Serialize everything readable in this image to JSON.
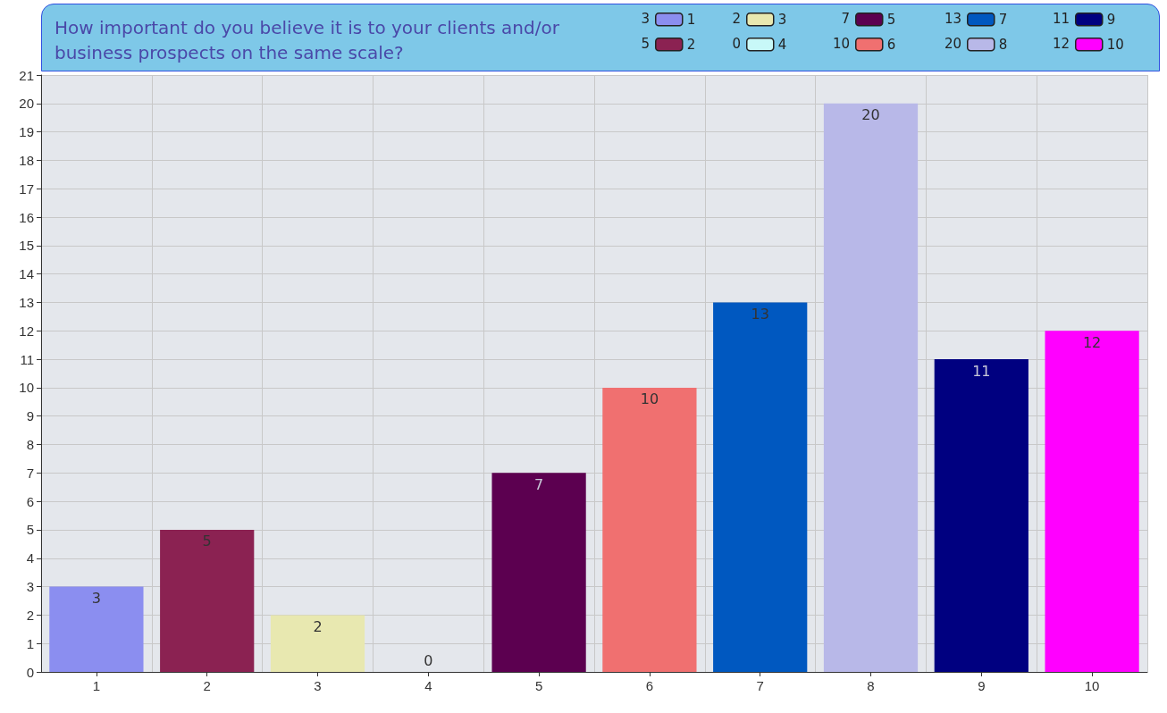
{
  "chart_data": {
    "type": "bar",
    "title": "How important do you believe it is to your clients and/or business prospects on the same scale?",
    "categories": [
      "1",
      "2",
      "3",
      "4",
      "5",
      "6",
      "7",
      "8",
      "9",
      "10"
    ],
    "series": [
      {
        "name": "1",
        "color": "#8b8ef0",
        "values": [
          3,
          null,
          null,
          null,
          null,
          null,
          null,
          null,
          null,
          null
        ]
      },
      {
        "name": "2",
        "color": "#8b2252",
        "values": [
          null,
          5,
          null,
          null,
          null,
          null,
          null,
          null,
          null,
          null
        ]
      },
      {
        "name": "3",
        "color": "#e8e8b0",
        "values": [
          null,
          null,
          2,
          null,
          null,
          null,
          null,
          null,
          null,
          null
        ]
      },
      {
        "name": "4",
        "color": "#c8f8f8",
        "values": [
          null,
          null,
          null,
          0,
          null,
          null,
          null,
          null,
          null,
          null
        ]
      },
      {
        "name": "5",
        "color": "#5c0050",
        "values": [
          null,
          null,
          null,
          null,
          7,
          null,
          null,
          null,
          null,
          null
        ]
      },
      {
        "name": "6",
        "color": "#f07070",
        "values": [
          null,
          null,
          null,
          null,
          null,
          10,
          null,
          null,
          null,
          null
        ]
      },
      {
        "name": "7",
        "color": "#0058c0",
        "values": [
          null,
          null,
          null,
          null,
          null,
          null,
          13,
          null,
          null,
          null
        ]
      },
      {
        "name": "8",
        "color": "#b8b8e8",
        "values": [
          null,
          null,
          null,
          null,
          null,
          null,
          null,
          20,
          null,
          null
        ]
      },
      {
        "name": "9",
        "color": "#000080",
        "values": [
          null,
          null,
          null,
          null,
          null,
          null,
          null,
          null,
          11,
          null
        ]
      },
      {
        "name": "10",
        "color": "#ff00ff",
        "values": [
          null,
          null,
          null,
          null,
          null,
          null,
          null,
          null,
          null,
          12
        ]
      }
    ],
    "ylim": [
      0,
      21
    ],
    "yticks": [
      0,
      1,
      2,
      3,
      4,
      5,
      6,
      7,
      8,
      9,
      10,
      11,
      12,
      13,
      14,
      15,
      16,
      17,
      18,
      19,
      20,
      21
    ],
    "annotations": [
      "3",
      "5",
      "2",
      "0",
      "7",
      "10",
      "13",
      "20",
      "11",
      "12"
    ],
    "grid": true,
    "legend": "top right",
    "data_labels": true
  }
}
